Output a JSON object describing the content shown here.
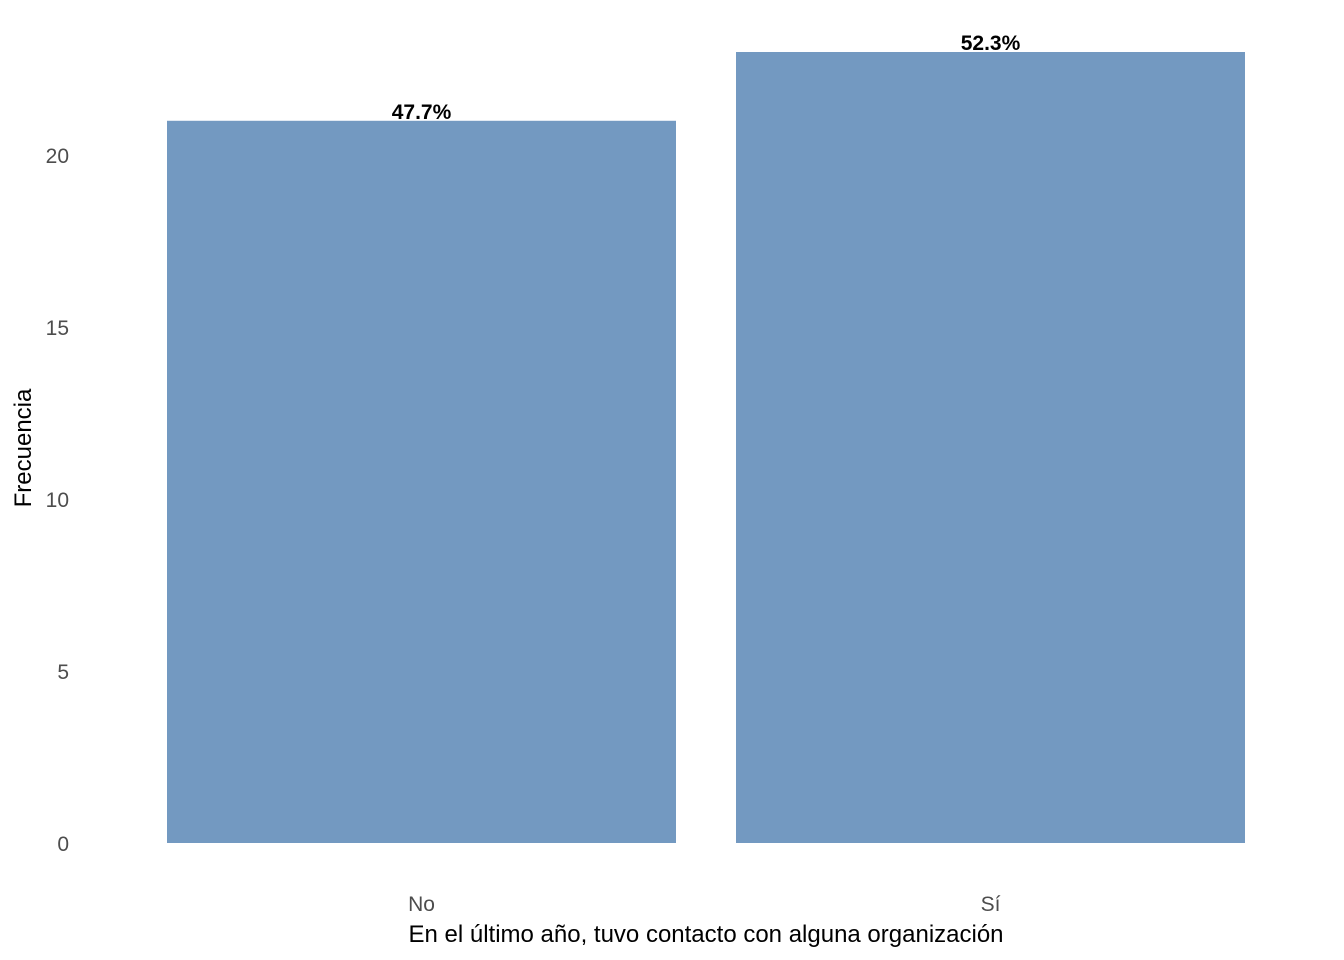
{
  "chart_data": {
    "type": "bar",
    "categories": [
      "No",
      "Sí"
    ],
    "values": [
      21,
      23
    ],
    "data_labels": [
      "47.7%",
      "52.3%"
    ],
    "title": "",
    "xlabel": "En el último año, tuvo contacto con alguna organización",
    "ylabel": "Frecuencia",
    "ylim": [
      0,
      23
    ],
    "yticks": [
      0,
      5,
      10,
      15,
      20
    ],
    "grid": false,
    "bar_color": "#7399c1"
  }
}
